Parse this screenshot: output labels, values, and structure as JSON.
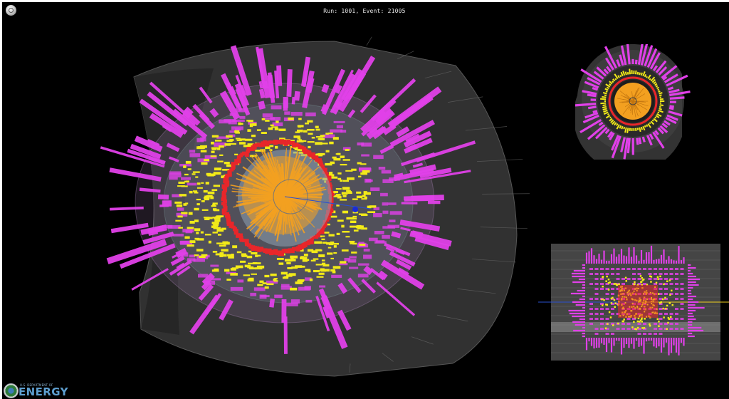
{
  "header": {
    "run_event": "Run: 1001, Event: 21005",
    "menu_icon": "settings-gear-icon"
  },
  "views": {
    "main": {
      "name": "3d-detector-view",
      "title": ""
    },
    "rphi": {
      "name": "r-phi-projection",
      "title": ""
    },
    "rz": {
      "name": "r-z-projection",
      "title": ""
    }
  },
  "logo": {
    "dept": "U.S. DEPARTMENT OF",
    "name": "ENERGY",
    "icon": "doe-seal-icon"
  },
  "colors": {
    "background": "#000000",
    "calorimeter_hadronic": "#e040e8",
    "calorimeter_em": "#f2ea18",
    "inner_ring": "#e8262a",
    "tracks": "#f3a020",
    "vertex": "#1a2bd8",
    "detector_shell": "#3c3c3c",
    "beam_axis": "#2a4fd0",
    "beam_axis_alt": "#f0d020"
  }
}
